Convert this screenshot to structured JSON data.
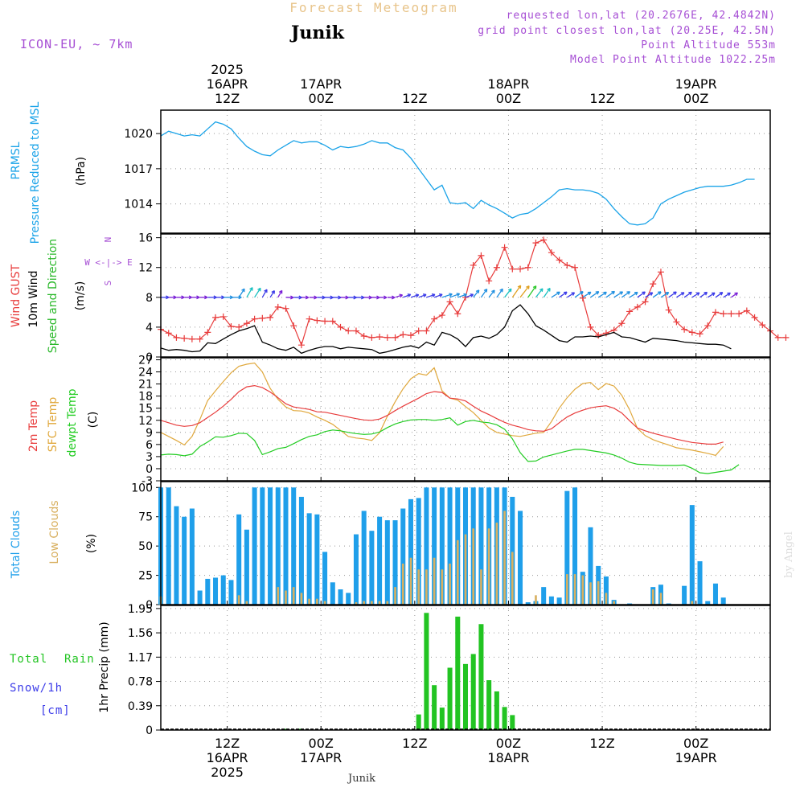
{
  "header": {
    "top_title": "Forecast Meteogram",
    "location": "Junik",
    "model": "ICON-EU, ~ 7km",
    "requested": "requested lon,lat (20.2676E, 42.4842N)",
    "grid_point": "grid point closest lon,lat (20.25E, 42.5N)",
    "point_altitude": "Point Altitude 553m",
    "model_altitude": "Model Point Altitude 1022.25m"
  },
  "footer": {
    "location": "Junik",
    "credit": "by Angel"
  },
  "time_axis": {
    "start": "2025-04-16 03Z",
    "step_hours": 1,
    "hours": 78,
    "top_labels": [
      {
        "h": 9,
        "lines": [
          "2025",
          "16APR",
          "12Z"
        ]
      },
      {
        "h": 21,
        "lines": [
          "17APR",
          "00Z"
        ]
      },
      {
        "h": 33,
        "lines": [
          "12Z"
        ]
      },
      {
        "h": 45,
        "lines": [
          "18APR",
          "00Z"
        ]
      },
      {
        "h": 57,
        "lines": [
          "12Z"
        ]
      },
      {
        "h": 69,
        "lines": [
          "19APR",
          "00Z"
        ]
      }
    ],
    "bottom_labels": [
      {
        "h": 9,
        "lines": [
          "12Z",
          "16APR",
          "2025"
        ]
      },
      {
        "h": 21,
        "lines": [
          "00Z",
          "17APR"
        ]
      },
      {
        "h": 33,
        "lines": [
          "12Z"
        ]
      },
      {
        "h": 45,
        "lines": [
          "00Z",
          "18APR"
        ]
      },
      {
        "h": 57,
        "lines": [
          "12Z"
        ]
      },
      {
        "h": 69,
        "lines": [
          "00Z",
          "19APR"
        ]
      }
    ]
  },
  "colors": {
    "pressure": "#1aa3e8",
    "gust": "#e83c3c",
    "wind": "#000000",
    "wind_title": "#2ab82a",
    "temp": "#e83c3c",
    "sfc_temp": "#e0a83c",
    "dewpt": "#22cc22",
    "total_clouds": "#1f9fea",
    "low_clouds": "#d8b060",
    "rain": "#22c422",
    "snow": "#3a3ae8",
    "model_text": "#a64ed4",
    "header_title": "#e8c48a"
  },
  "panels": {
    "pressure": {
      "labels": [
        "PRMSL",
        "Pressure Reduced to MSL"
      ],
      "unit": "(hPa)",
      "ticks": [
        "1014",
        "1017",
        "1020"
      ]
    },
    "wind": {
      "labels": [
        "Wind GUST",
        "10m Wind",
        "Speed and Direction"
      ],
      "unit": "(m/s)",
      "ticks": [
        "0",
        "4",
        "8",
        "12",
        "16"
      ],
      "compass": [
        "N",
        "W <-|-> E",
        "S"
      ]
    },
    "temp": {
      "labels": [
        "2m Temp",
        "SFC Temp",
        "dewpt Temp"
      ],
      "unit": "(C)",
      "ticks": [
        "-3",
        "0",
        "3",
        "6",
        "9",
        "12",
        "15",
        "18",
        "21",
        "24",
        "27"
      ]
    },
    "clouds": {
      "labels": [
        "Total Clouds",
        "Low Clouds"
      ],
      "unit": "(%)",
      "ticks": [
        "0",
        "25",
        "50",
        "75",
        "100"
      ]
    },
    "precip": {
      "labels": [
        "Total",
        "Rain",
        "Snow/1h",
        "[cm]"
      ],
      "unit": "1hr Precip (mm)",
      "ticks": [
        "0",
        "0.39",
        "0.78",
        "1.17",
        "1.56",
        "1.95"
      ]
    }
  },
  "chart_data": [
    {
      "type": "line",
      "name": "PRMSL",
      "ylabel": "(hPa)",
      "ylim": [
        1011.5,
        1022
      ],
      "y": [
        1019.8,
        1020.2,
        1020.0,
        1019.8,
        1019.9,
        1019.8,
        1020.4,
        1021.0,
        1020.8,
        1020.4,
        1019.6,
        1018.9,
        1018.5,
        1018.2,
        1018.1,
        1018.6,
        1019.0,
        1019.4,
        1019.2,
        1019.3,
        1019.3,
        1019.0,
        1018.6,
        1018.9,
        1018.8,
        1018.9,
        1019.1,
        1019.4,
        1019.2,
        1019.2,
        1018.8,
        1018.6,
        1017.9,
        1017.0,
        1016.1,
        1015.2,
        1015.6,
        1014.1,
        1014.0,
        1014.1,
        1013.6,
        1014.3,
        1013.9,
        1013.6,
        1013.2,
        1012.8,
        1013.1,
        1013.2,
        1013.6,
        1014.1,
        1014.6,
        1015.2,
        1015.3,
        1015.2,
        1015.2,
        1015.1,
        1014.9,
        1014.4,
        1013.6,
        1012.9,
        1012.3,
        1012.2,
        1012.3,
        1012.8,
        1014.0,
        1014.4,
        1014.7,
        1015.0,
        1015.2,
        1015.4,
        1015.5,
        1015.5,
        1015.5,
        1015.6,
        1015.8,
        1016.1,
        1016.1
      ]
    },
    {
      "type": "line",
      "name": "Wind GUST",
      "ylabel": "(m/s)",
      "ylim": [
        0,
        16.5
      ],
      "y": [
        3.7,
        3.2,
        2.6,
        2.5,
        2.4,
        2.4,
        3.3,
        5.3,
        5.4,
        4.1,
        4.0,
        4.5,
        5.1,
        5.2,
        5.3,
        6.7,
        6.5,
        4.2,
        1.6,
        5.1,
        4.9,
        4.8,
        4.8,
        4.0,
        3.5,
        3.5,
        2.8,
        2.6,
        2.7,
        2.6,
        2.6,
        3.0,
        2.9,
        3.5,
        3.5,
        5.1,
        5.6,
        7.4,
        5.8,
        8.0,
        12.3,
        13.6,
        10.2,
        12.0,
        14.7,
        11.8,
        11.8,
        12.0,
        15.3,
        15.7,
        14.0,
        13.0,
        12.3,
        12.0,
        7.9,
        4.0,
        2.9,
        3.2,
        3.6,
        4.5,
        6.1,
        6.7,
        7.4,
        9.8,
        11.4,
        6.3,
        4.7,
        3.7,
        3.3,
        3.1,
        4.2,
        6.0,
        5.8,
        5.8,
        5.8,
        6.2,
        5.3,
        4.3,
        3.5,
        2.6,
        2.6
      ]
    },
    {
      "type": "line",
      "name": "10m Wind",
      "ylabel": "(m/s)",
      "ylim": [
        0,
        16.5
      ],
      "y": [
        1.2,
        0.9,
        1.0,
        0.9,
        0.7,
        0.8,
        1.9,
        1.8,
        2.4,
        3.0,
        3.5,
        3.8,
        4.2,
        2.0,
        1.6,
        1.1,
        0.9,
        1.3,
        0.5,
        0.9,
        1.2,
        1.4,
        1.4,
        1.1,
        1.3,
        1.2,
        1.1,
        1.0,
        0.5,
        0.7,
        1.0,
        1.3,
        1.5,
        1.2,
        2.0,
        1.6,
        3.3,
        3.0,
        2.4,
        1.4,
        2.6,
        2.8,
        2.5,
        3.0,
        4.0,
        6.2,
        7.0,
        5.8,
        4.2,
        3.6,
        2.9,
        2.2,
        2.0,
        2.7,
        2.7,
        2.8,
        2.7,
        3.0,
        3.3,
        2.7,
        2.6,
        2.3,
        2.0,
        2.5,
        2.4,
        2.3,
        2.2,
        2.0,
        1.9,
        1.8,
        1.7,
        1.7,
        1.6,
        1.1
      ]
    },
    {
      "type": "line",
      "name": "2m Temp",
      "ylabel": "(C)",
      "ylim": [
        -3,
        27.5
      ],
      "y": [
        12.0,
        11.4,
        10.8,
        10.5,
        10.7,
        11.4,
        12.7,
        14.0,
        15.5,
        17.2,
        19.1,
        20.3,
        20.6,
        20.1,
        19.0,
        17.6,
        16.1,
        15.3,
        15.0,
        14.7,
        14.1,
        14.0,
        13.6,
        13.2,
        12.8,
        12.4,
        12.1,
        12.0,
        12.3,
        13.2,
        14.4,
        15.5,
        16.5,
        17.5,
        18.6,
        19.1,
        18.9,
        17.5,
        17.3,
        16.8,
        15.5,
        14.3,
        13.4,
        12.4,
        11.5,
        10.8,
        10.3,
        9.7,
        9.4,
        9.3,
        9.9,
        11.4,
        12.8,
        13.8,
        14.5,
        15.1,
        15.4,
        15.6,
        15.0,
        13.8,
        11.9,
        10.1,
        9.4,
        8.8,
        8.3,
        7.8,
        7.3,
        6.9,
        6.5,
        6.3,
        6.1,
        6.1,
        6.6
      ]
    },
    {
      "type": "line",
      "name": "SFC Temp",
      "ylabel": "(C)",
      "ylim": [
        -3,
        27.5
      ],
      "y": [
        9.0,
        8.0,
        7.0,
        5.9,
        8.0,
        12.2,
        16.9,
        19.3,
        21.6,
        23.8,
        25.4,
        25.9,
        26.2,
        24.0,
        19.9,
        17.2,
        15.3,
        14.4,
        14.3,
        13.8,
        12.8,
        12.0,
        11.0,
        9.5,
        8.0,
        7.6,
        7.4,
        7.0,
        8.9,
        13.0,
        16.6,
        19.8,
        22.3,
        23.6,
        23.2,
        25.0,
        19.3,
        17.5,
        17.0,
        15.4,
        13.9,
        12.0,
        10.1,
        9.0,
        8.6,
        8.2,
        8.0,
        8.4,
        8.8,
        9.0,
        11.7,
        15.0,
        17.6,
        19.7,
        21.1,
        21.4,
        19.6,
        21.1,
        20.5,
        18.2,
        14.6,
        10.0,
        8.2,
        7.2,
        6.5,
        5.9,
        5.2,
        4.9,
        4.6,
        4.2,
        3.8,
        3.3,
        5.5
      ]
    },
    {
      "type": "line",
      "name": "dewpt Temp",
      "ylabel": "(C)",
      "ylim": [
        -3,
        27.5
      ],
      "y": [
        3.4,
        3.6,
        3.5,
        3.2,
        3.6,
        5.5,
        6.6,
        7.9,
        7.8,
        8.2,
        8.8,
        8.7,
        7.0,
        3.5,
        4.2,
        5.0,
        5.3,
        6.2,
        7.2,
        8.0,
        8.4,
        9.2,
        9.6,
        9.4,
        9.0,
        8.7,
        8.5,
        8.6,
        9.1,
        10.2,
        11.1,
        11.7,
        12.1,
        12.2,
        12.2,
        12.0,
        12.2,
        12.6,
        10.8,
        11.7,
        12.0,
        11.6,
        11.4,
        10.9,
        9.8,
        7.4,
        4.0,
        1.8,
        1.9,
        2.9,
        3.4,
        3.9,
        4.4,
        4.8,
        4.8,
        4.5,
        4.2,
        3.9,
        3.4,
        2.6,
        1.6,
        1.1,
        1.0,
        0.9,
        0.8,
        0.8,
        0.8,
        0.9,
        0.1,
        -1.0,
        -1.2,
        -0.9,
        -0.6,
        -0.3,
        1.0
      ]
    },
    {
      "type": "bar",
      "name": "Total Clouds",
      "ylabel": "(%)",
      "ylim": [
        0,
        105
      ],
      "y": [
        100,
        100,
        84,
        75,
        82,
        12,
        22,
        23,
        25,
        21,
        77,
        64,
        100,
        100,
        100,
        100,
        100,
        100,
        92,
        78,
        77,
        45,
        19,
        13,
        10,
        60,
        80,
        63,
        75,
        72,
        72,
        82,
        90,
        91,
        100,
        100,
        100,
        100,
        100,
        100,
        100,
        100,
        100,
        100,
        100,
        92,
        80,
        2,
        3,
        15,
        7,
        6,
        97,
        100,
        28,
        66,
        33,
        24,
        4,
        0,
        1,
        0,
        0,
        15,
        17,
        1,
        0,
        16,
        85,
        37,
        3,
        18,
        6
      ]
    },
    {
      "type": "bar",
      "name": "Low Clouds",
      "ylabel": "(%)",
      "ylim": [
        0,
        105
      ],
      "y": [
        7,
        0,
        0,
        0,
        0,
        0,
        0,
        0,
        0,
        0,
        8,
        3,
        0,
        0,
        0,
        15,
        12,
        15,
        10,
        5,
        5,
        3,
        0,
        0,
        0,
        2,
        3,
        3,
        3,
        3,
        15,
        35,
        40,
        30,
        30,
        40,
        30,
        35,
        55,
        60,
        65,
        30,
        65,
        70,
        80,
        45,
        0,
        0,
        8,
        0,
        0,
        0,
        26,
        26,
        25,
        19,
        20,
        10,
        3,
        0,
        0,
        0,
        0,
        13,
        10,
        0,
        0,
        0,
        3,
        0,
        0,
        0,
        0
      ]
    },
    {
      "type": "bar",
      "name": "1hr Precip",
      "ylabel": "1hr Precip (mm)",
      "ylim": [
        0,
        2.0
      ],
      "y": [
        0,
        0,
        0,
        0,
        0,
        0,
        0,
        0,
        0,
        0,
        0,
        0,
        0,
        0,
        0,
        0,
        0.02,
        0,
        0.02,
        0,
        0,
        0,
        0,
        0,
        0,
        0,
        0,
        0,
        0,
        0,
        0,
        0,
        0,
        0.25,
        1.88,
        0.72,
        0.36,
        1.0,
        1.82,
        1.06,
        1.22,
        1.7,
        0.8,
        0.62,
        0.37,
        0.24,
        0,
        0,
        0,
        0,
        0,
        0,
        0,
        0,
        0,
        0,
        0,
        0,
        0,
        0,
        0,
        0,
        0,
        0,
        0,
        0,
        0,
        0,
        0,
        0,
        0,
        0,
        0,
        0,
        0,
        0
      ]
    }
  ]
}
